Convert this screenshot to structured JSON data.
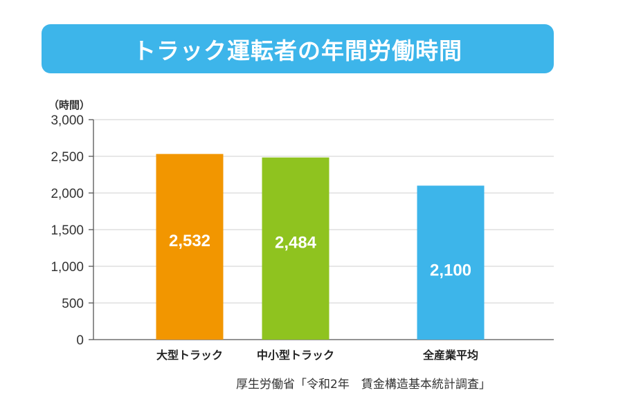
{
  "chart_data": {
    "type": "bar",
    "title": "トラック運転者の年間労働時間",
    "ylabel": "（時間）",
    "categories": [
      "大型トラック",
      "中小型トラック",
      "全産業平均"
    ],
    "values": [
      2532,
      2484,
      2100
    ],
    "data_labels": [
      "2,532",
      "2,484",
      "2,100"
    ],
    "colors": [
      "#f29600",
      "#8fc31f",
      "#3db5ea"
    ],
    "ylim": [
      0,
      3000
    ],
    "yticks": [
      0,
      500,
      1000,
      1500,
      2000,
      2500,
      3000
    ],
    "ytick_labels": [
      "0",
      "500",
      "1,000",
      "1,500",
      "2,000",
      "2,500",
      "3,000"
    ],
    "grid": true,
    "source": "厚生労働省「令和2年　賃金構造基本統計調査」"
  }
}
